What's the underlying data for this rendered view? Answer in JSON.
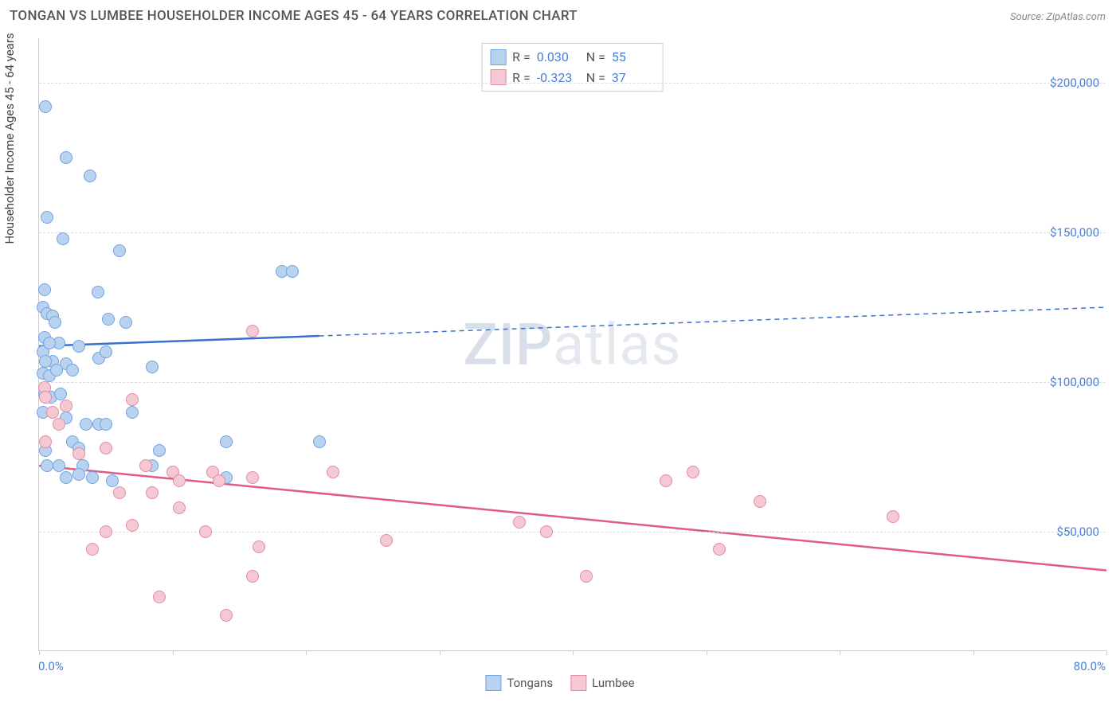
{
  "header": {
    "title": "TONGAN VS LUMBEE HOUSEHOLDER INCOME AGES 45 - 64 YEARS CORRELATION CHART",
    "source": "Source: ZipAtlas.com"
  },
  "watermark": "ZIPatlas",
  "chart": {
    "type": "scatter",
    "yaxis_title": "Householder Income Ages 45 - 64 years",
    "xlim": [
      0,
      80
    ],
    "ylim": [
      10000,
      215000
    ],
    "xaxis_label_left": "0.0%",
    "xaxis_label_right": "80.0%",
    "ytick_labels": [
      "$50,000",
      "$100,000",
      "$150,000",
      "$200,000"
    ],
    "ytick_values": [
      50000,
      100000,
      150000,
      200000
    ],
    "xtick_values": [
      0,
      10,
      20,
      30,
      40,
      50,
      60,
      70,
      80
    ],
    "grid_color": "#dddddd",
    "axis_color": "#cccccc",
    "label_color": "#4a7fd8",
    "background_color": "#ffffff",
    "marker_size": 16,
    "series": [
      {
        "name": "Tongans",
        "fill": "#b9d2f0",
        "stroke": "#6fa3e0",
        "line_color": "#3a6fd0",
        "R": "0.030",
        "N": "55",
        "trend": {
          "y_at_x0": 112000,
          "y_at_x80": 125000,
          "solid_until_x": 21
        },
        "points": [
          [
            0.5,
            192000
          ],
          [
            2.0,
            175000
          ],
          [
            3.8,
            169000
          ],
          [
            0.6,
            155000
          ],
          [
            1.8,
            148000
          ],
          [
            6.0,
            144000
          ],
          [
            18.2,
            137000
          ],
          [
            19.0,
            137000
          ],
          [
            4.4,
            130000
          ],
          [
            0.4,
            131000
          ],
          [
            0.3,
            125000
          ],
          [
            0.6,
            123000
          ],
          [
            1.0,
            122000
          ],
          [
            1.2,
            120000
          ],
          [
            5.2,
            121000
          ],
          [
            6.5,
            120000
          ],
          [
            0.4,
            115000
          ],
          [
            1.5,
            113000
          ],
          [
            3.0,
            112000
          ],
          [
            0.3,
            110000
          ],
          [
            1.0,
            107000
          ],
          [
            2.0,
            106000
          ],
          [
            4.5,
            108000
          ],
          [
            5.0,
            110000
          ],
          [
            0.3,
            103000
          ],
          [
            0.8,
            102000
          ],
          [
            1.3,
            104000
          ],
          [
            2.5,
            104000
          ],
          [
            8.5,
            105000
          ],
          [
            0.4,
            96000
          ],
          [
            0.9,
            95000
          ],
          [
            1.6,
            96000
          ],
          [
            0.3,
            90000
          ],
          [
            7.0,
            90000
          ],
          [
            2.0,
            88000
          ],
          [
            3.5,
            86000
          ],
          [
            4.5,
            86000
          ],
          [
            5.0,
            86000
          ],
          [
            14.0,
            80000
          ],
          [
            2.5,
            80000
          ],
          [
            3.0,
            78000
          ],
          [
            0.5,
            77000
          ],
          [
            9.0,
            77000
          ],
          [
            8.5,
            72000
          ],
          [
            5.5,
            67000
          ],
          [
            3.3,
            72000
          ],
          [
            1.5,
            72000
          ],
          [
            0.6,
            72000
          ],
          [
            2.0,
            68000
          ],
          [
            3.0,
            69000
          ],
          [
            4.0,
            68000
          ],
          [
            14.0,
            68000
          ],
          [
            21.0,
            80000
          ],
          [
            0.8,
            113000
          ],
          [
            0.5,
            107000
          ]
        ]
      },
      {
        "name": "Lumbee",
        "fill": "#f5c9d4",
        "stroke": "#e48aa3",
        "line_color": "#e05a84",
        "R": "-0.323",
        "N": "37",
        "trend": {
          "y_at_x0": 72000,
          "y_at_x80": 37000,
          "solid_until_x": 80
        },
        "points": [
          [
            16.0,
            117000
          ],
          [
            0.4,
            98000
          ],
          [
            0.5,
            95000
          ],
          [
            1.0,
            90000
          ],
          [
            2.0,
            92000
          ],
          [
            1.5,
            86000
          ],
          [
            7.0,
            94000
          ],
          [
            0.5,
            80000
          ],
          [
            3.0,
            76000
          ],
          [
            5.0,
            78000
          ],
          [
            8.0,
            72000
          ],
          [
            10.0,
            70000
          ],
          [
            13.0,
            70000
          ],
          [
            10.5,
            67000
          ],
          [
            13.5,
            67000
          ],
          [
            16.0,
            68000
          ],
          [
            22.0,
            70000
          ],
          [
            49.0,
            70000
          ],
          [
            47.0,
            67000
          ],
          [
            54.0,
            60000
          ],
          [
            64.0,
            55000
          ],
          [
            36.0,
            53000
          ],
          [
            38.0,
            50000
          ],
          [
            7.0,
            52000
          ],
          [
            5.0,
            50000
          ],
          [
            12.5,
            50000
          ],
          [
            6.0,
            63000
          ],
          [
            8.5,
            63000
          ],
          [
            16.5,
            45000
          ],
          [
            26.0,
            47000
          ],
          [
            41.0,
            35000
          ],
          [
            51.0,
            44000
          ],
          [
            9.0,
            28000
          ],
          [
            14.0,
            22000
          ],
          [
            16.0,
            35000
          ],
          [
            4.0,
            44000
          ],
          [
            10.5,
            58000
          ]
        ]
      }
    ],
    "legend_bottom": [
      "Tongans",
      "Lumbee"
    ]
  }
}
